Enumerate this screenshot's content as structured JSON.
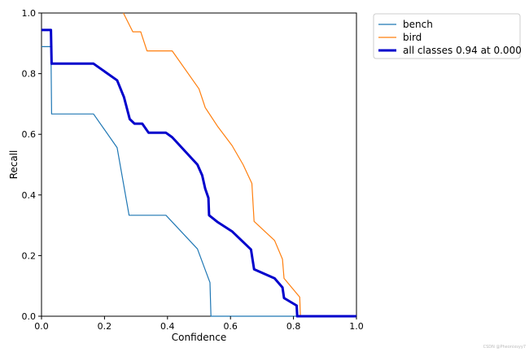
{
  "chart_data": {
    "type": "line",
    "title": "",
    "xlabel": "Confidence",
    "ylabel": "Recall",
    "xlim": [
      0.0,
      1.0
    ],
    "ylim": [
      0.0,
      1.0
    ],
    "xticks": [
      "0.0",
      "0.2",
      "0.4",
      "0.6",
      "0.8",
      "1.0"
    ],
    "yticks": [
      "0.0",
      "0.2",
      "0.4",
      "0.6",
      "0.8",
      "1.0"
    ],
    "grid": false,
    "legend_position": "outside-top-right",
    "series": [
      {
        "name": "bench",
        "color": "#1f77b4",
        "width": "thin",
        "points": [
          [
            0.0,
            0.889
          ],
          [
            0.03,
            0.889
          ],
          [
            0.032,
            0.667
          ],
          [
            0.165,
            0.667
          ],
          [
            0.24,
            0.556
          ],
          [
            0.278,
            0.333
          ],
          [
            0.395,
            0.333
          ],
          [
            0.495,
            0.222
          ],
          [
            0.535,
            0.111
          ],
          [
            0.538,
            0.0
          ],
          [
            0.82,
            0.0
          ],
          [
            1.0,
            0.0
          ]
        ]
      },
      {
        "name": "bird",
        "color": "#ff7f0e",
        "width": "thin",
        "points": [
          [
            0.26,
            1.0
          ],
          [
            0.29,
            0.938
          ],
          [
            0.315,
            0.938
          ],
          [
            0.335,
            0.875
          ],
          [
            0.415,
            0.875
          ],
          [
            0.5,
            0.75
          ],
          [
            0.52,
            0.688
          ],
          [
            0.56,
            0.625
          ],
          [
            0.605,
            0.563
          ],
          [
            0.64,
            0.5
          ],
          [
            0.668,
            0.438
          ],
          [
            0.675,
            0.313
          ],
          [
            0.74,
            0.25
          ],
          [
            0.765,
            0.188
          ],
          [
            0.77,
            0.125
          ],
          [
            0.82,
            0.063
          ],
          [
            0.822,
            0.0
          ]
        ]
      },
      {
        "name": "all classes 0.94 at 0.000",
        "color": "#0000cc",
        "width": "thick",
        "points": [
          [
            0.0,
            0.944
          ],
          [
            0.03,
            0.944
          ],
          [
            0.032,
            0.833
          ],
          [
            0.165,
            0.833
          ],
          [
            0.24,
            0.778
          ],
          [
            0.262,
            0.722
          ],
          [
            0.28,
            0.65
          ],
          [
            0.295,
            0.635
          ],
          [
            0.32,
            0.635
          ],
          [
            0.34,
            0.605
          ],
          [
            0.395,
            0.605
          ],
          [
            0.415,
            0.59
          ],
          [
            0.495,
            0.5
          ],
          [
            0.51,
            0.465
          ],
          [
            0.52,
            0.42
          ],
          [
            0.53,
            0.39
          ],
          [
            0.532,
            0.333
          ],
          [
            0.56,
            0.31
          ],
          [
            0.605,
            0.28
          ],
          [
            0.665,
            0.22
          ],
          [
            0.675,
            0.155
          ],
          [
            0.74,
            0.125
          ],
          [
            0.765,
            0.095
          ],
          [
            0.77,
            0.06
          ],
          [
            0.81,
            0.035
          ],
          [
            0.812,
            0.0
          ],
          [
            1.0,
            0.0
          ]
        ]
      }
    ]
  },
  "watermark": "CSDN @Pheonixsyy7"
}
